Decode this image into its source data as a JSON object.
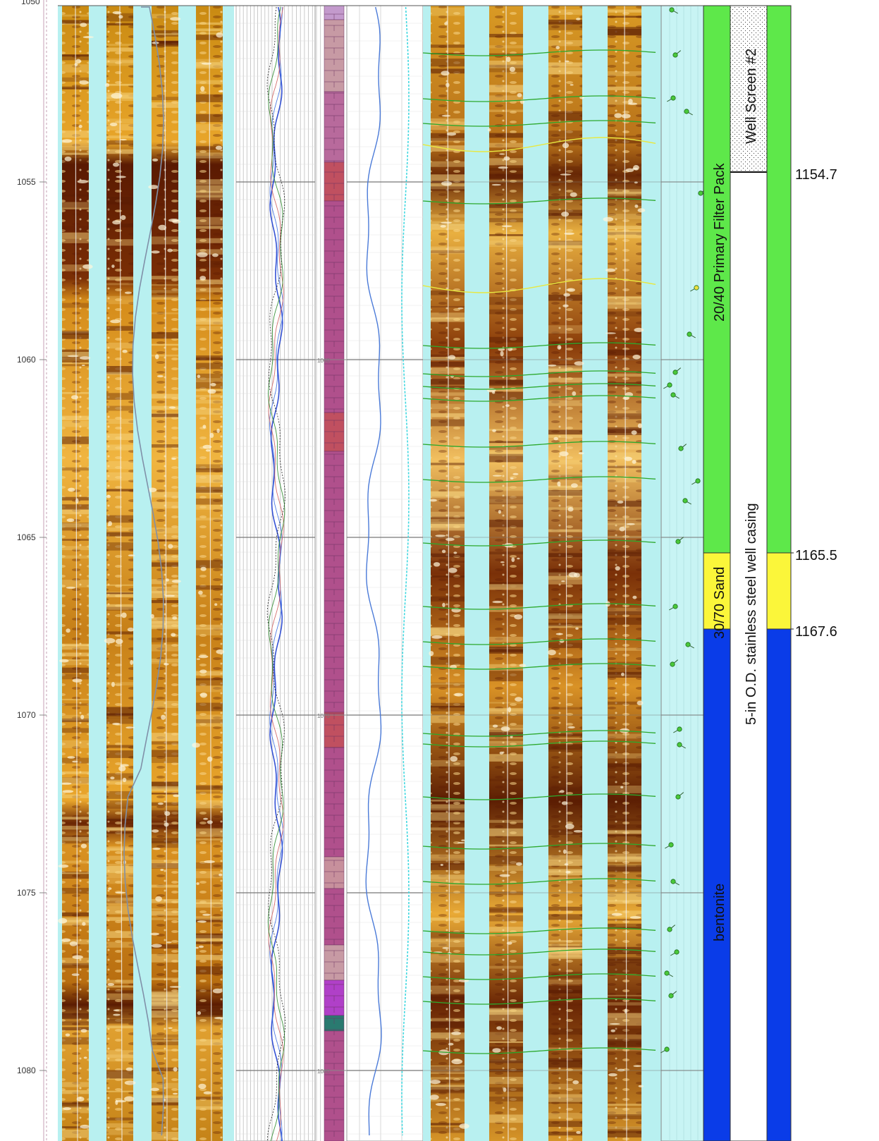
{
  "depth_axis": {
    "top_partial_label": "1050",
    "labels": [
      "1055",
      "1060",
      "1065",
      "1070",
      "1075",
      "1080"
    ]
  },
  "lithology_track": {
    "partial_labels": [
      "1060",
      "1070",
      "1080"
    ]
  },
  "completion": {
    "zones": [
      {
        "label": "20/40 Primary Filter Pack",
        "color": "#5ee84a"
      },
      {
        "label": "30/70 Sand",
        "color": "#fbf63a"
      },
      {
        "label": "bentonite",
        "color": "#0a3ce8"
      }
    ],
    "well_screen_label": "Well Screen #2",
    "casing_label": "5-in O.D.  stainless steel well casing",
    "depth_markers": [
      "1154.7",
      "1165.5",
      "1167.6"
    ]
  },
  "colors": {
    "image_background": "#b8f0f0",
    "dip_track_bg": "#c8f4f4",
    "bentonite": "#0a3ce8",
    "sand": "#fbf63a",
    "filter_pack": "#5ee84a"
  }
}
